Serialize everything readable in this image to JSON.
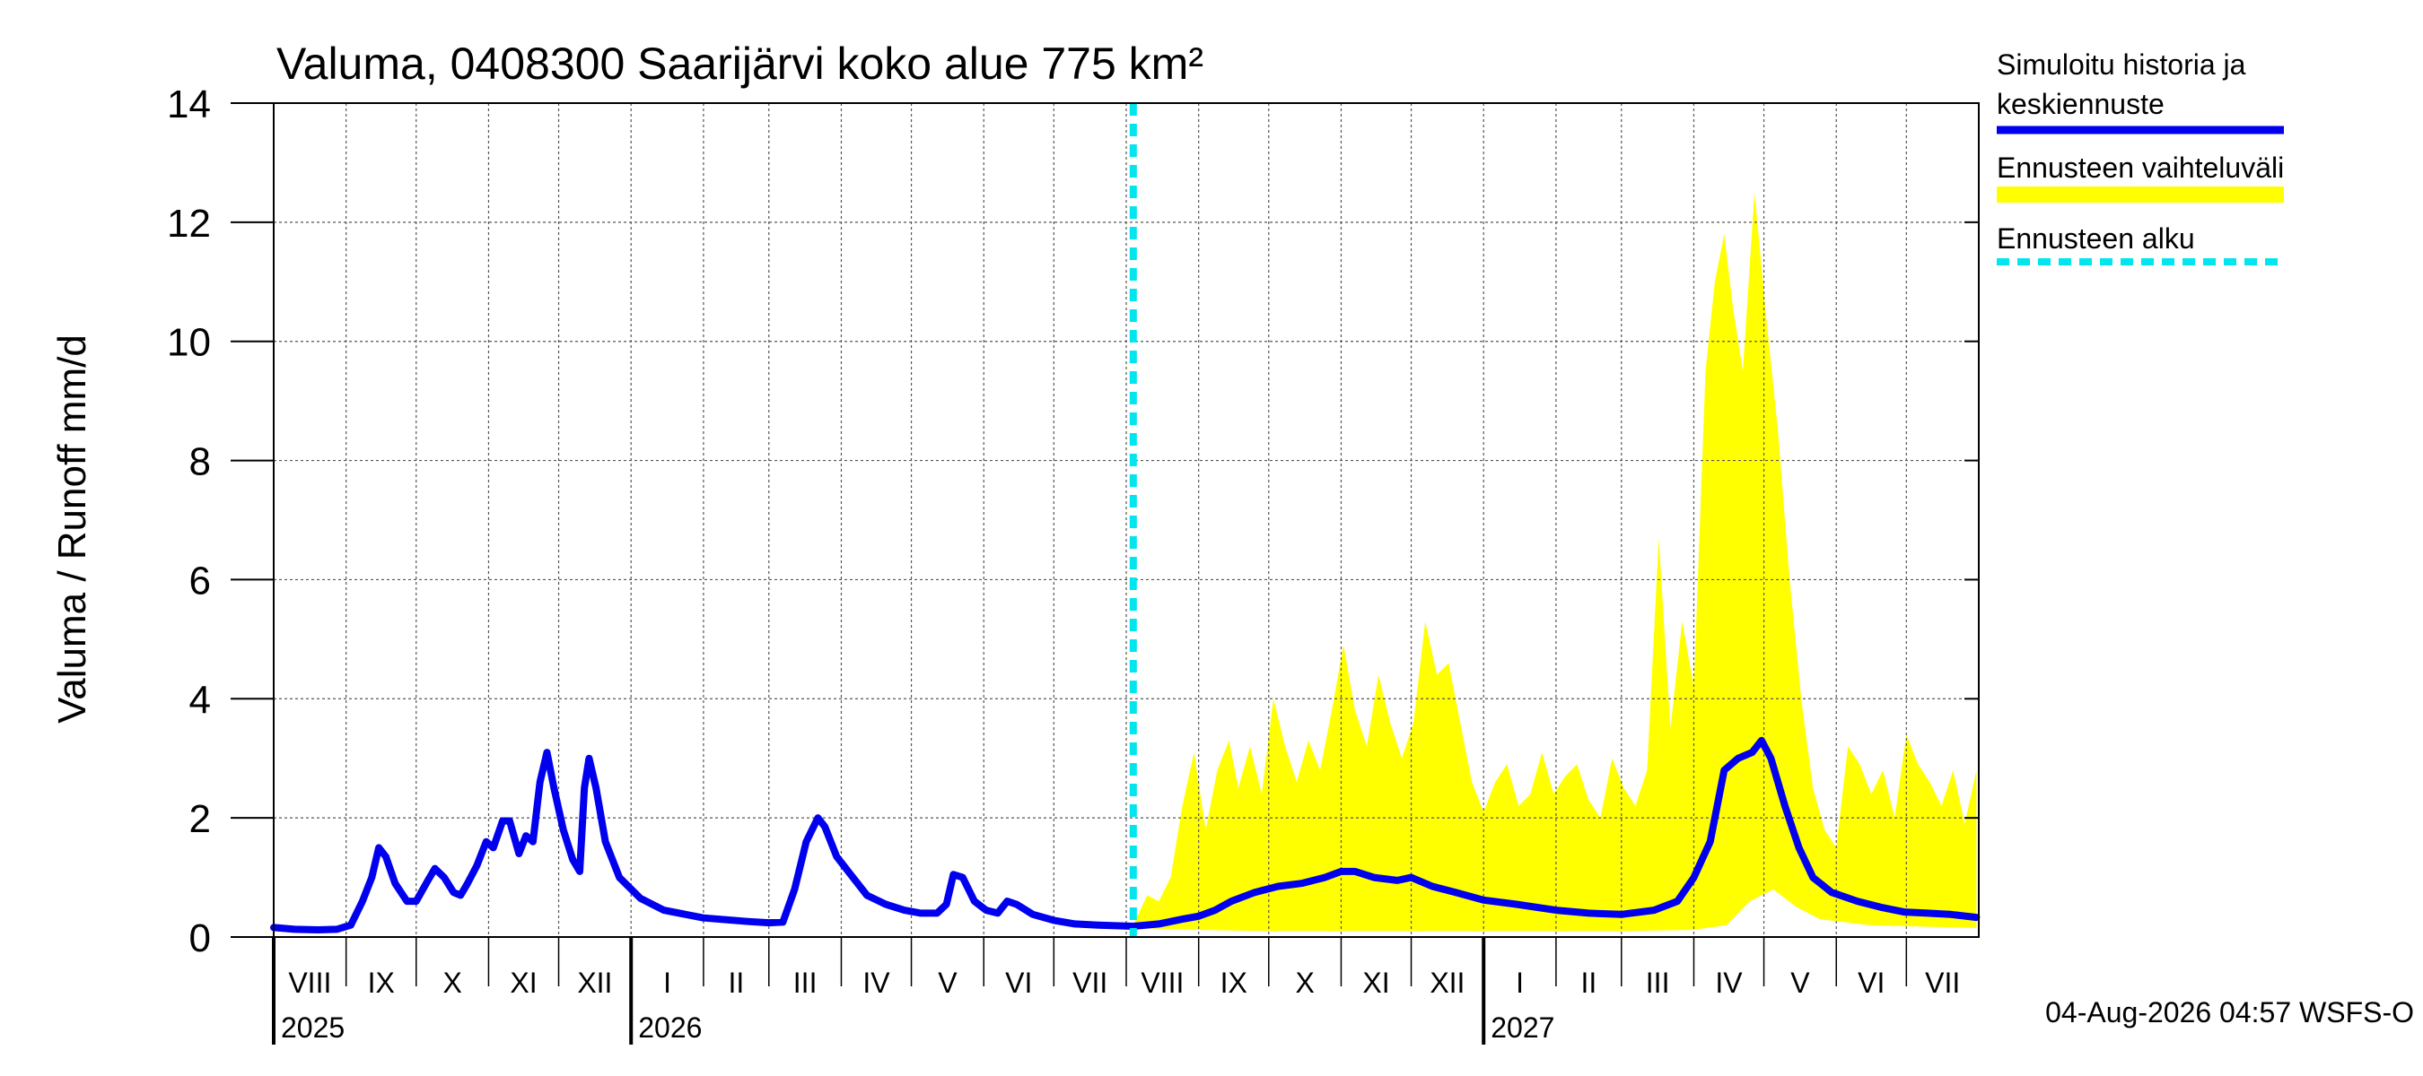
{
  "chart_data": {
    "type": "line",
    "title": "Valuma, 0408300 Saarijärvi koko alue 775 km²",
    "ylabel": "Valuma / Runoff    mm/d",
    "xlabel": "",
    "ylim": [
      0,
      14
    ],
    "yticks": [
      0,
      2,
      4,
      6,
      8,
      10,
      12,
      14
    ],
    "x_start": "2025-08-01",
    "x_end": "2027-07-31",
    "forecast_start": "2026-08-04",
    "grid": true,
    "legend_position": "right",
    "months": [
      {
        "label": "VIII",
        "start": "2025-08-01"
      },
      {
        "label": "IX",
        "start": "2025-09-01"
      },
      {
        "label": "X",
        "start": "2025-10-01"
      },
      {
        "label": "XI",
        "start": "2025-11-01"
      },
      {
        "label": "XII",
        "start": "2025-12-01"
      },
      {
        "label": "I",
        "start": "2026-01-01"
      },
      {
        "label": "II",
        "start": "2026-02-01"
      },
      {
        "label": "III",
        "start": "2026-03-01"
      },
      {
        "label": "IV",
        "start": "2026-04-01"
      },
      {
        "label": "V",
        "start": "2026-05-01"
      },
      {
        "label": "VI",
        "start": "2026-06-01"
      },
      {
        "label": "VII",
        "start": "2026-07-01"
      },
      {
        "label": "VIII",
        "start": "2026-08-01"
      },
      {
        "label": "IX",
        "start": "2026-09-01"
      },
      {
        "label": "X",
        "start": "2026-10-01"
      },
      {
        "label": "XI",
        "start": "2026-11-01"
      },
      {
        "label": "XII",
        "start": "2026-12-01"
      },
      {
        "label": "I",
        "start": "2027-01-01"
      },
      {
        "label": "II",
        "start": "2027-02-01"
      },
      {
        "label": "III",
        "start": "2027-03-01"
      },
      {
        "label": "IV",
        "start": "2027-04-01"
      },
      {
        "label": "V",
        "start": "2027-05-01"
      },
      {
        "label": "VI",
        "start": "2027-06-01"
      },
      {
        "label": "VII",
        "start": "2027-07-01"
      }
    ],
    "years": [
      {
        "label": "2025",
        "start": "2025-08-01"
      },
      {
        "label": "2026",
        "start": "2026-01-01"
      },
      {
        "label": "2027",
        "start": "2027-01-01"
      }
    ],
    "series": [
      {
        "name": "Simuloitu historia ja keskiennuste",
        "color": "#0000ee",
        "points": [
          [
            "2025-08-01",
            0.16
          ],
          [
            "2025-08-10",
            0.13
          ],
          [
            "2025-08-20",
            0.12
          ],
          [
            "2025-08-28",
            0.13
          ],
          [
            "2025-09-03",
            0.2
          ],
          [
            "2025-09-08",
            0.6
          ],
          [
            "2025-09-12",
            1.0
          ],
          [
            "2025-09-15",
            1.5
          ],
          [
            "2025-09-18",
            1.35
          ],
          [
            "2025-09-22",
            0.9
          ],
          [
            "2025-09-27",
            0.6
          ],
          [
            "2025-10-01",
            0.6
          ],
          [
            "2025-10-06",
            0.95
          ],
          [
            "2025-10-09",
            1.15
          ],
          [
            "2025-10-13",
            1.0
          ],
          [
            "2025-10-17",
            0.75
          ],
          [
            "2025-10-20",
            0.7
          ],
          [
            "2025-10-23",
            0.9
          ],
          [
            "2025-10-27",
            1.2
          ],
          [
            "2025-10-31",
            1.6
          ],
          [
            "2025-11-03",
            1.5
          ],
          [
            "2025-11-07",
            1.95
          ],
          [
            "2025-11-10",
            1.95
          ],
          [
            "2025-11-14",
            1.4
          ],
          [
            "2025-11-17",
            1.7
          ],
          [
            "2025-11-20",
            1.6
          ],
          [
            "2025-11-23",
            2.6
          ],
          [
            "2025-11-26",
            3.1
          ],
          [
            "2025-11-29",
            2.5
          ],
          [
            "2025-12-03",
            1.8
          ],
          [
            "2025-12-07",
            1.3
          ],
          [
            "2025-12-10",
            1.1
          ],
          [
            "2025-12-12",
            2.5
          ],
          [
            "2025-12-14",
            3.0
          ],
          [
            "2025-12-17",
            2.5
          ],
          [
            "2025-12-21",
            1.6
          ],
          [
            "2025-12-27",
            1.0
          ],
          [
            "2026-01-05",
            0.65
          ],
          [
            "2026-01-15",
            0.45
          ],
          [
            "2026-02-01",
            0.32
          ],
          [
            "2026-02-20",
            0.26
          ],
          [
            "2026-03-01",
            0.24
          ],
          [
            "2026-03-07",
            0.25
          ],
          [
            "2026-03-12",
            0.8
          ],
          [
            "2026-03-17",
            1.6
          ],
          [
            "2026-03-22",
            2.0
          ],
          [
            "2026-03-25",
            1.85
          ],
          [
            "2026-03-30",
            1.35
          ],
          [
            "2026-04-05",
            1.05
          ],
          [
            "2026-04-12",
            0.7
          ],
          [
            "2026-04-20",
            0.55
          ],
          [
            "2026-04-28",
            0.45
          ],
          [
            "2026-05-05",
            0.4
          ],
          [
            "2026-05-12",
            0.4
          ],
          [
            "2026-05-16",
            0.55
          ],
          [
            "2026-05-19",
            1.05
          ],
          [
            "2026-05-23",
            1.0
          ],
          [
            "2026-05-28",
            0.6
          ],
          [
            "2026-06-02",
            0.45
          ],
          [
            "2026-06-07",
            0.4
          ],
          [
            "2026-06-11",
            0.6
          ],
          [
            "2026-06-15",
            0.55
          ],
          [
            "2026-06-22",
            0.38
          ],
          [
            "2026-07-01",
            0.28
          ],
          [
            "2026-07-10",
            0.22
          ],
          [
            "2026-07-20",
            0.2
          ],
          [
            "2026-08-04",
            0.18
          ],
          [
            "2026-08-15",
            0.22
          ],
          [
            "2026-08-25",
            0.3
          ],
          [
            "2026-09-01",
            0.35
          ],
          [
            "2026-09-08",
            0.45
          ],
          [
            "2026-09-15",
            0.6
          ],
          [
            "2026-09-25",
            0.75
          ],
          [
            "2026-10-05",
            0.85
          ],
          [
            "2026-10-15",
            0.9
          ],
          [
            "2026-10-25",
            1.0
          ],
          [
            "2026-11-01",
            1.1
          ],
          [
            "2026-11-07",
            1.1
          ],
          [
            "2026-11-15",
            1.0
          ],
          [
            "2026-11-25",
            0.95
          ],
          [
            "2026-12-01",
            1.0
          ],
          [
            "2026-12-10",
            0.85
          ],
          [
            "2026-12-20",
            0.75
          ],
          [
            "2027-01-01",
            0.62
          ],
          [
            "2027-01-15",
            0.55
          ],
          [
            "2027-02-01",
            0.45
          ],
          [
            "2027-02-15",
            0.4
          ],
          [
            "2027-03-01",
            0.38
          ],
          [
            "2027-03-15",
            0.45
          ],
          [
            "2027-03-25",
            0.6
          ],
          [
            "2027-04-01",
            1.0
          ],
          [
            "2027-04-08",
            1.6
          ],
          [
            "2027-04-14",
            2.8
          ],
          [
            "2027-04-20",
            3.0
          ],
          [
            "2027-04-26",
            3.1
          ],
          [
            "2027-04-30",
            3.3
          ],
          [
            "2027-05-04",
            3.0
          ],
          [
            "2027-05-10",
            2.2
          ],
          [
            "2027-05-16",
            1.5
          ],
          [
            "2027-05-22",
            1.0
          ],
          [
            "2027-05-30",
            0.75
          ],
          [
            "2027-06-10",
            0.6
          ],
          [
            "2027-06-20",
            0.5
          ],
          [
            "2027-06-30",
            0.42
          ],
          [
            "2027-07-10",
            0.4
          ],
          [
            "2027-07-20",
            0.38
          ],
          [
            "2027-07-31",
            0.33
          ]
        ]
      },
      {
        "name": "Ennusteen vaihteluväli",
        "color": "#ffff00",
        "upper": [
          [
            "2026-08-04",
            0.2
          ],
          [
            "2026-08-10",
            0.7
          ],
          [
            "2026-08-15",
            0.6
          ],
          [
            "2026-08-20",
            1.0
          ],
          [
            "2026-08-25",
            2.2
          ],
          [
            "2026-08-30",
            3.1
          ],
          [
            "2026-09-04",
            1.8
          ],
          [
            "2026-09-09",
            2.8
          ],
          [
            "2026-09-14",
            3.3
          ],
          [
            "2026-09-18",
            2.5
          ],
          [
            "2026-09-23",
            3.2
          ],
          [
            "2026-09-28",
            2.4
          ],
          [
            "2026-10-03",
            4.0
          ],
          [
            "2026-10-08",
            3.2
          ],
          [
            "2026-10-13",
            2.6
          ],
          [
            "2026-10-18",
            3.3
          ],
          [
            "2026-10-23",
            2.8
          ],
          [
            "2026-10-28",
            3.8
          ],
          [
            "2026-11-02",
            4.9
          ],
          [
            "2026-11-07",
            3.8
          ],
          [
            "2026-11-12",
            3.2
          ],
          [
            "2026-11-17",
            4.4
          ],
          [
            "2026-11-22",
            3.6
          ],
          [
            "2026-11-27",
            3.0
          ],
          [
            "2026-12-02",
            3.6
          ],
          [
            "2026-12-07",
            5.3
          ],
          [
            "2026-12-12",
            4.4
          ],
          [
            "2026-12-17",
            4.6
          ],
          [
            "2026-12-22",
            3.6
          ],
          [
            "2026-12-27",
            2.6
          ],
          [
            "2027-01-01",
            2.1
          ],
          [
            "2027-01-06",
            2.6
          ],
          [
            "2027-01-11",
            2.9
          ],
          [
            "2027-01-16",
            2.2
          ],
          [
            "2027-01-21",
            2.4
          ],
          [
            "2027-01-26",
            3.1
          ],
          [
            "2027-01-31",
            2.4
          ],
          [
            "2027-02-05",
            2.7
          ],
          [
            "2027-02-10",
            2.9
          ],
          [
            "2027-02-15",
            2.3
          ],
          [
            "2027-02-20",
            2.0
          ],
          [
            "2027-02-25",
            3.0
          ],
          [
            "2027-03-02",
            2.5
          ],
          [
            "2027-03-07",
            2.2
          ],
          [
            "2027-03-12",
            2.8
          ],
          [
            "2027-03-17",
            6.7
          ],
          [
            "2027-03-22",
            3.5
          ],
          [
            "2027-03-27",
            5.3
          ],
          [
            "2027-04-01",
            4.2
          ],
          [
            "2027-04-06",
            9.5
          ],
          [
            "2027-04-10",
            11.0
          ],
          [
            "2027-04-14",
            11.8
          ],
          [
            "2027-04-18",
            10.5
          ],
          [
            "2027-04-22",
            9.5
          ],
          [
            "2027-04-27",
            12.5
          ],
          [
            "2027-05-02",
            10.4
          ],
          [
            "2027-05-07",
            8.5
          ],
          [
            "2027-05-12",
            6.0
          ],
          [
            "2027-05-17",
            4.0
          ],
          [
            "2027-05-22",
            2.5
          ],
          [
            "2027-05-27",
            1.8
          ],
          [
            "2027-06-01",
            1.5
          ],
          [
            "2027-06-06",
            3.2
          ],
          [
            "2027-06-11",
            2.9
          ],
          [
            "2027-06-16",
            2.4
          ],
          [
            "2027-06-21",
            2.8
          ],
          [
            "2027-06-26",
            2.0
          ],
          [
            "2027-07-01",
            3.4
          ],
          [
            "2027-07-06",
            2.9
          ],
          [
            "2027-07-11",
            2.6
          ],
          [
            "2027-07-16",
            2.2
          ],
          [
            "2027-07-21",
            2.8
          ],
          [
            "2027-07-26",
            1.9
          ],
          [
            "2027-07-31",
            2.8
          ]
        ],
        "lower": [
          [
            "2026-08-04",
            0.15
          ],
          [
            "2026-09-01",
            0.12
          ],
          [
            "2026-10-01",
            0.1
          ],
          [
            "2026-11-01",
            0.1
          ],
          [
            "2026-12-01",
            0.1
          ],
          [
            "2027-01-01",
            0.1
          ],
          [
            "2027-02-01",
            0.1
          ],
          [
            "2027-03-01",
            0.1
          ],
          [
            "2027-04-01",
            0.12
          ],
          [
            "2027-04-15",
            0.2
          ],
          [
            "2027-04-25",
            0.6
          ],
          [
            "2027-05-05",
            0.8
          ],
          [
            "2027-05-15",
            0.5
          ],
          [
            "2027-05-25",
            0.3
          ],
          [
            "2027-06-15",
            0.2
          ],
          [
            "2027-07-31",
            0.15
          ]
        ]
      }
    ],
    "legend": {
      "line1": "Simuloitu historia ja",
      "line2": "keskiennuste",
      "band": "Ennusteen vaihteluväli",
      "forecast_start": "Ennusteen alku",
      "forecast_start_color": "#00e5ee"
    },
    "footer": "04-Aug-2026 04:57 WSFS-O"
  }
}
